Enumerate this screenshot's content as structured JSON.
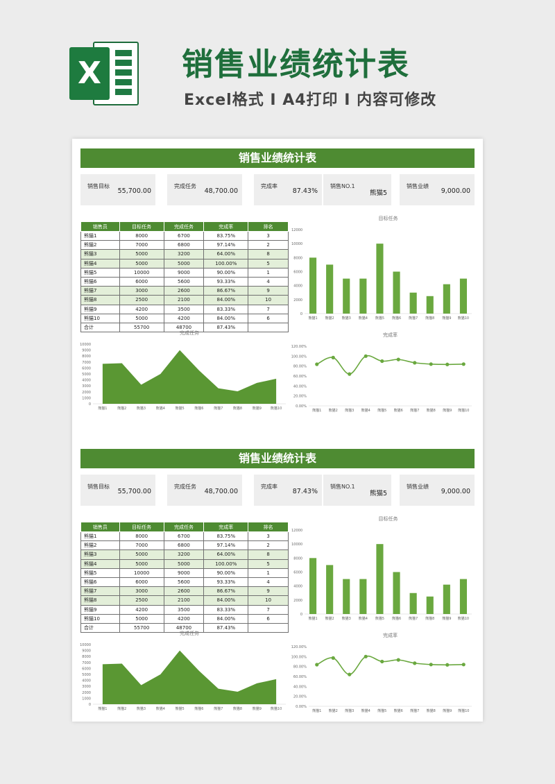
{
  "header": {
    "title": "销售业绩统计表",
    "subtitle": "Excel格式 I A4打印 I 内容可修改",
    "logo_letter": "X"
  },
  "colors": {
    "brand_green": "#1f6f3c",
    "section_green": "#4e8b32",
    "chart_green": "#6aa83f",
    "row_tint": "#e3efd9"
  },
  "section": {
    "title": "销售业绩统计表",
    "kpis": [
      {
        "label": "销售目标",
        "value": "55,700.00"
      },
      {
        "label": "完成任务",
        "value": "48,700.00"
      },
      {
        "label": "完成率",
        "value": "87.43%"
      },
      {
        "label": "销售NO.1",
        "value": "熊猫5"
      },
      {
        "label": "销售业绩",
        "value": "9,000.00"
      }
    ],
    "table": {
      "headers": [
        "销售员",
        "目标任务",
        "完成任务",
        "完成率",
        "排名"
      ],
      "rows": [
        [
          "熊猫1",
          "8000",
          "6700",
          "83.75%",
          "3"
        ],
        [
          "熊猫2",
          "7000",
          "6800",
          "97.14%",
          "2"
        ],
        [
          "熊猫3",
          "5000",
          "3200",
          "64.00%",
          "8"
        ],
        [
          "熊猫4",
          "5000",
          "5000",
          "100.00%",
          "5"
        ],
        [
          "熊猫5",
          "10000",
          "9000",
          "90.00%",
          "1"
        ],
        [
          "熊猫6",
          "6000",
          "5600",
          "93.33%",
          "4"
        ],
        [
          "熊猫7",
          "3000",
          "2600",
          "86.67%",
          "9"
        ],
        [
          "熊猫8",
          "2500",
          "2100",
          "84.00%",
          "10"
        ],
        [
          "熊猫9",
          "4200",
          "3500",
          "83.33%",
          "7"
        ],
        [
          "熊猫10",
          "5000",
          "4200",
          "84.00%",
          "6"
        ]
      ],
      "total": [
        "合计",
        "55700",
        "48700",
        "87.43%",
        ""
      ]
    }
  },
  "chart_data": [
    {
      "id": "target",
      "type": "bar",
      "title": "目标任务",
      "categories": [
        "熊猫1",
        "熊猫2",
        "熊猫3",
        "熊猫4",
        "熊猫5",
        "熊猫6",
        "熊猫7",
        "熊猫8",
        "熊猫9",
        "熊猫10"
      ],
      "values": [
        8000,
        7000,
        5000,
        5000,
        10000,
        6000,
        3000,
        2500,
        4200,
        5000
      ],
      "ylim": [
        0,
        12000
      ],
      "yticks": [
        "0",
        "2000",
        "4000",
        "6000",
        "8000",
        "10000",
        "12000"
      ]
    },
    {
      "id": "done",
      "type": "area",
      "title": "完成任务",
      "categories": [
        "熊猫1",
        "熊猫2",
        "熊猫3",
        "熊猫4",
        "熊猫5",
        "熊猫6",
        "熊猫7",
        "熊猫8",
        "熊猫9",
        "熊猫10"
      ],
      "values": [
        6700,
        6800,
        3200,
        5000,
        9000,
        5600,
        2600,
        2100,
        3500,
        4200
      ],
      "ylim": [
        0,
        10000
      ],
      "yticks": [
        "0",
        "1000",
        "2000",
        "3000",
        "4000",
        "5000",
        "6000",
        "7000",
        "8000",
        "9000",
        "10000"
      ]
    },
    {
      "id": "rate",
      "type": "line",
      "title": "完成率",
      "categories": [
        "熊猫1",
        "熊猫2",
        "熊猫3",
        "熊猫4",
        "熊猫5",
        "熊猫6",
        "熊猫7",
        "熊猫8",
        "熊猫9",
        "熊猫10"
      ],
      "values": [
        83.75,
        97.14,
        64.0,
        100.0,
        90.0,
        93.33,
        86.67,
        84.0,
        83.33,
        84.0
      ],
      "ylim": [
        0,
        120
      ],
      "yticks": [
        "0.00%",
        "20.00%",
        "40.00%",
        "60.00%",
        "80.00%",
        "100.00%",
        "120.00%"
      ]
    }
  ]
}
